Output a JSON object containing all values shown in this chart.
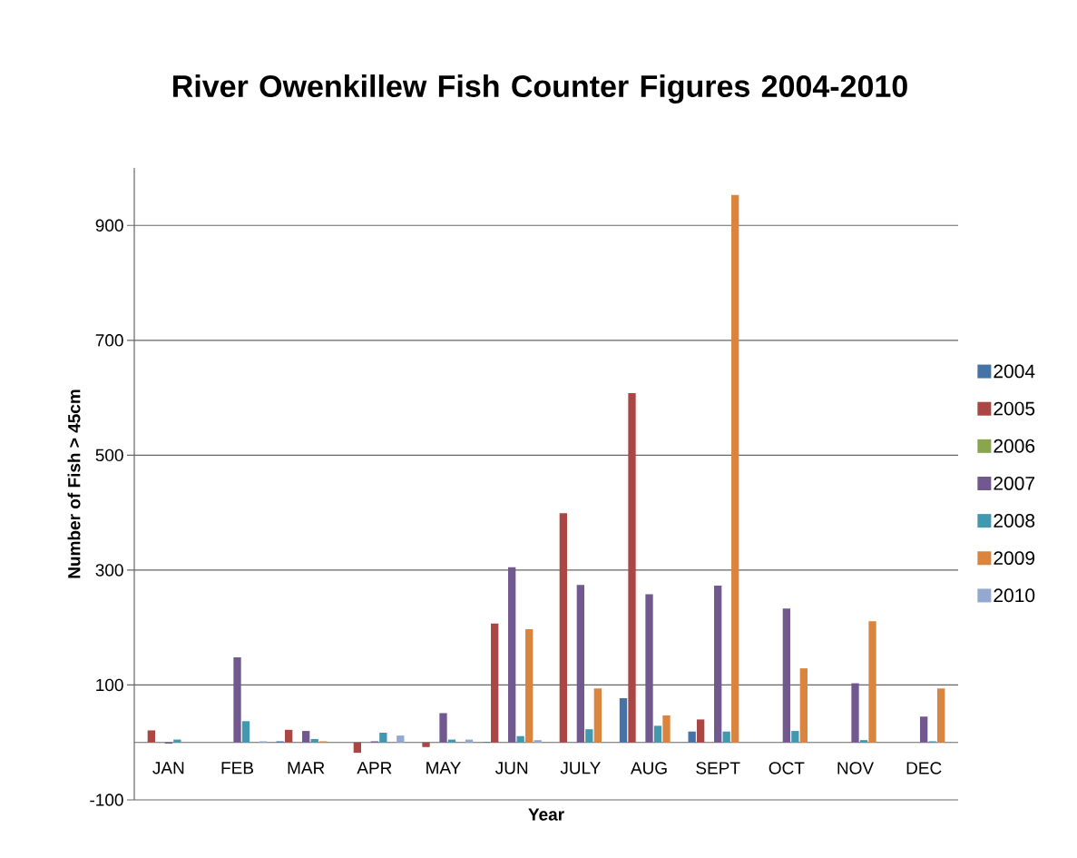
{
  "chart_data": {
    "type": "bar",
    "title": "River Owenkillew Fish Counter Figures 2004-2010",
    "xlabel": "Year",
    "ylabel": "Number of Fish > 45cm",
    "categories": [
      "JAN",
      "FEB",
      "MAR",
      "APR",
      "MAY",
      "JUN",
      "JULY",
      "AUG",
      "SEPT",
      "OCT",
      "NOV",
      "DEC"
    ],
    "series": [
      {
        "name": "2004",
        "color": "#4572a7",
        "values": [
          0,
          0,
          2,
          0,
          0,
          1,
          0,
          77,
          19,
          0,
          0,
          0
        ]
      },
      {
        "name": "2005",
        "color": "#aa4643",
        "values": [
          21,
          0,
          22,
          -18,
          -8,
          207,
          399,
          608,
          40,
          0,
          0,
          0
        ]
      },
      {
        "name": "2006",
        "color": "#89a54e",
        "values": [
          0,
          0,
          0,
          0,
          0,
          0,
          0,
          0,
          0,
          0,
          0,
          0
        ]
      },
      {
        "name": "2007",
        "color": "#71588f",
        "values": [
          -2,
          148,
          20,
          2,
          51,
          305,
          274,
          258,
          273,
          233,
          103,
          45
        ]
      },
      {
        "name": "2008",
        "color": "#4198af",
        "values": [
          5,
          37,
          6,
          17,
          5,
          11,
          23,
          29,
          19,
          20,
          4,
          2
        ]
      },
      {
        "name": "2009",
        "color": "#db843d",
        "values": [
          0,
          0,
          2,
          0,
          0,
          197,
          94,
          47,
          953,
          129,
          211,
          94
        ]
      },
      {
        "name": "2010",
        "color": "#93a9cf",
        "values": [
          0,
          2,
          0,
          12,
          5,
          4,
          0,
          0,
          0,
          0,
          0,
          0
        ]
      }
    ],
    "ylim": [
      -100,
      1000
    ],
    "yticks": [
      -100,
      100,
      300,
      500,
      700,
      900
    ],
    "grid": "y",
    "legend": "right"
  }
}
